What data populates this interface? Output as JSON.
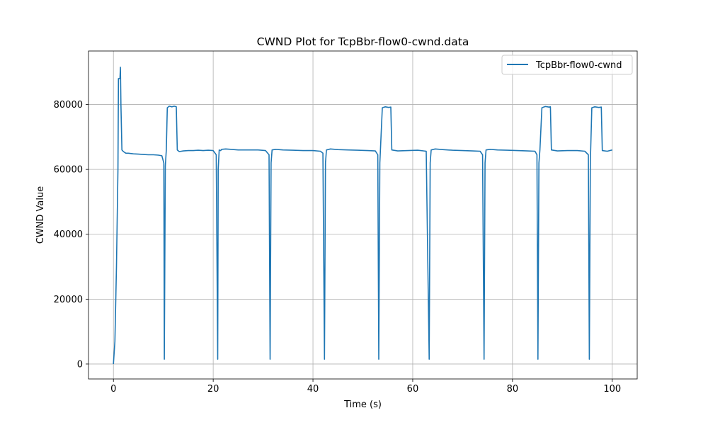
{
  "chart_data": {
    "type": "line",
    "title": "CWND Plot for TcpBbr-flow0-cwnd.data",
    "xlabel": "Time (s)",
    "ylabel": "CWND Value",
    "xlim": [
      -5,
      105
    ],
    "ylim": [
      -4600,
      96500
    ],
    "xticks": [
      0,
      20,
      40,
      60,
      80,
      100
    ],
    "yticks": [
      0,
      20000,
      40000,
      60000,
      80000
    ],
    "xtick_labels": [
      "0",
      "20",
      "40",
      "60",
      "80",
      "100"
    ],
    "ytick_labels": [
      "0",
      "20000",
      "40000",
      "60000",
      "80000"
    ],
    "grid": true,
    "legend_position": "top-right",
    "series_color": "#1f77b4",
    "series": [
      {
        "name": "TcpBbr-flow0-cwnd",
        "x": [
          0,
          0.3,
          0.6,
          0.9,
          1.0,
          1.3,
          1.4,
          1.5,
          1.7,
          2.0,
          2.5,
          3.0,
          4.0,
          5.0,
          6.0,
          7.0,
          8.0,
          9.0,
          9.7,
          10.1,
          10.2,
          10.4,
          10.6,
          10.8,
          11.2,
          11.7,
          12.2,
          12.6,
          12.8,
          13.2,
          14,
          15,
          16,
          17,
          18,
          19,
          20,
          20.6,
          20.9,
          21.0,
          21.2,
          21.5,
          21.7,
          22.5,
          23.5,
          25,
          27,
          29,
          30.5,
          31.2,
          31.4,
          31.6,
          31.8,
          32.5,
          34,
          36,
          38,
          40,
          41.5,
          42.0,
          42.3,
          42.5,
          42.7,
          43.5,
          45,
          47,
          49,
          51,
          52.5,
          53.0,
          53.2,
          53.4,
          53.9,
          54.5,
          55.2,
          55.6,
          55.8,
          57,
          59,
          61,
          62.7,
          63.3,
          63.5,
          63.7,
          64.5,
          66,
          68,
          70,
          72,
          73.5,
          74.0,
          74.3,
          74.5,
          74.7,
          75.5,
          77,
          79,
          81,
          83,
          84.5,
          84.9,
          85.1,
          85.3,
          85.5,
          85.9,
          86.6,
          87.3,
          87.6,
          87.8,
          89,
          91,
          93,
          94.5,
          95.2,
          95.4,
          95.6,
          95.9,
          96.5,
          97.3,
          97.8,
          98.0,
          99,
          100
        ],
        "y": [
          0,
          7000,
          30000,
          60000,
          88000,
          88000,
          91500,
          80000,
          66000,
          65500,
          65000,
          65000,
          64800,
          64700,
          64600,
          64500,
          64500,
          64400,
          64200,
          62000,
          1500,
          61000,
          66000,
          79000,
          79500,
          79300,
          79500,
          79300,
          66000,
          65500,
          65700,
          65800,
          65800,
          65900,
          65800,
          65900,
          65800,
          64500,
          1500,
          60000,
          66000,
          65800,
          66200,
          66300,
          66200,
          66000,
          66000,
          66000,
          65800,
          64500,
          1500,
          62000,
          66000,
          66200,
          66000,
          65900,
          65800,
          65800,
          65600,
          65000,
          1500,
          62000,
          66000,
          66300,
          66100,
          66000,
          65900,
          65800,
          65700,
          64500,
          1500,
          62000,
          79000,
          79300,
          79100,
          79200,
          66000,
          65700,
          65800,
          65900,
          65600,
          1500,
          62000,
          66000,
          66300,
          66100,
          65900,
          65800,
          65700,
          65600,
          64500,
          1500,
          62000,
          66000,
          66200,
          66000,
          65900,
          65800,
          65700,
          65600,
          64500,
          1500,
          62000,
          66000,
          79000,
          79400,
          79200,
          79300,
          66000,
          65700,
          65800,
          65800,
          65600,
          64500,
          1500,
          62000,
          79000,
          79300,
          79100,
          79200,
          65800,
          65600,
          66000
        ]
      }
    ]
  }
}
